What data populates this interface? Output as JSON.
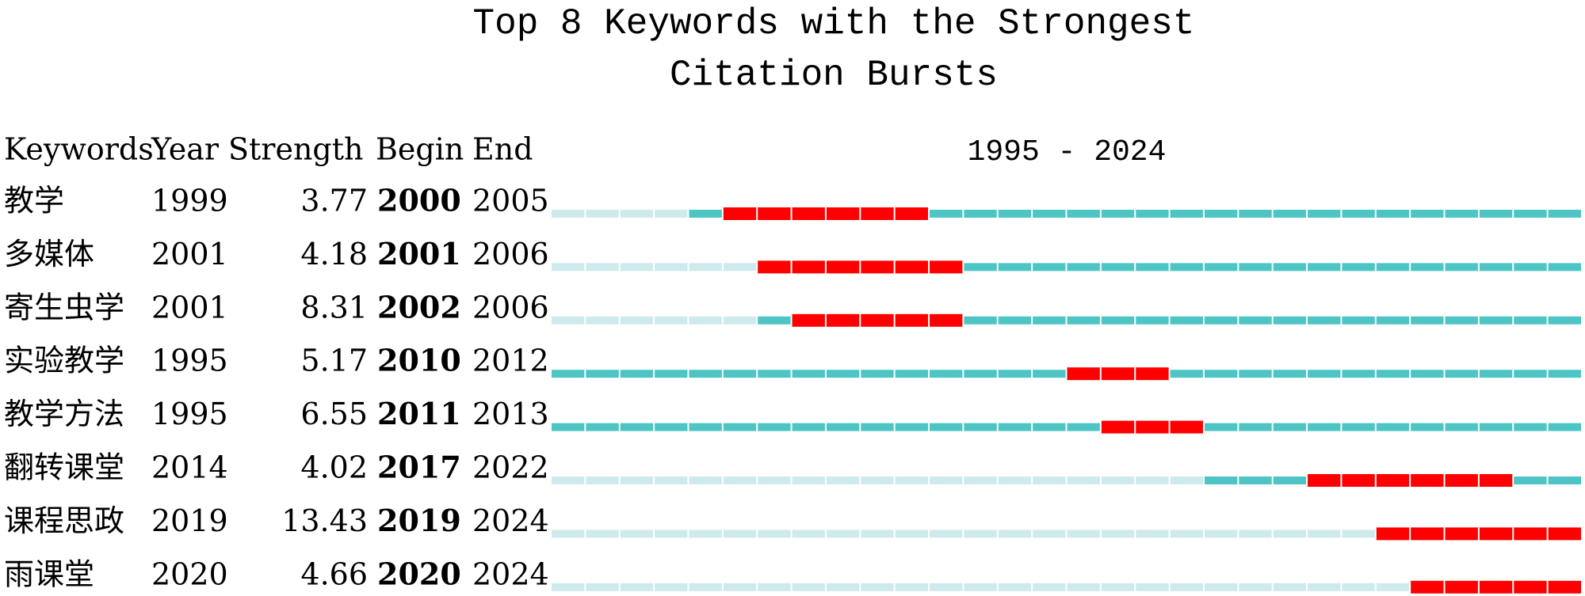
{
  "chart_data": {
    "type": "burst",
    "title": "Top 8 Keywords with the Strongest",
    "subtitle": "Citation Bursts",
    "columns": [
      "Keywords",
      "Year",
      "Strength",
      "Begin",
      "End"
    ],
    "period_label": "1995 - 2024",
    "xlim": [
      1995,
      2024
    ],
    "colors": {
      "before": "#cfeaec",
      "active": "#4dc5c5",
      "burst": "#ff0000"
    },
    "rows": [
      {
        "keyword": "教学",
        "year": 1999,
        "strength": 3.77,
        "begin": 2000,
        "end": 2005
      },
      {
        "keyword": "多媒体",
        "year": 2001,
        "strength": 4.18,
        "begin": 2001,
        "end": 2006
      },
      {
        "keyword": "寄生虫学",
        "year": 2001,
        "strength": 8.31,
        "begin": 2002,
        "end": 2006
      },
      {
        "keyword": "实验教学",
        "year": 1995,
        "strength": 5.17,
        "begin": 2010,
        "end": 2012
      },
      {
        "keyword": "教学方法",
        "year": 1995,
        "strength": 6.55,
        "begin": 2011,
        "end": 2013
      },
      {
        "keyword": "翻转课堂",
        "year": 2014,
        "strength": 4.02,
        "begin": 2017,
        "end": 2022
      },
      {
        "keyword": "课程思政",
        "year": 2019,
        "strength": 13.43,
        "begin": 2019,
        "end": 2024
      },
      {
        "keyword": "雨课堂",
        "year": 2020,
        "strength": 4.66,
        "begin": 2020,
        "end": 2024
      }
    ]
  }
}
